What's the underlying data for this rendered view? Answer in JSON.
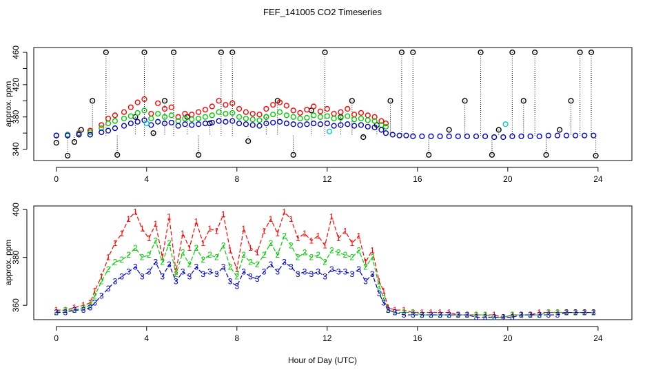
{
  "page": {
    "title": "FEF_141005  CO2 Timeseries",
    "shared_xlabel": "Hour of Day (UTC)"
  },
  "colors": {
    "ch1": "#ff0000",
    "ch2": "#00cc00",
    "ch3": "#0000cc",
    "raw": "#000000",
    "alt": "#00cccc"
  },
  "chart_data": [
    {
      "type": "scatter",
      "title": "FEF_141005  CO2 Timeseries",
      "ylabel": "approx. ppm",
      "xlim": [
        -1,
        25.5
      ],
      "ylim": [
        326,
        466
      ],
      "xticks": [
        0,
        4,
        8,
        12,
        16,
        20,
        24
      ],
      "yticks": [
        340,
        360,
        380,
        400,
        420,
        440,
        460
      ],
      "ytick_labels": [
        "340",
        "",
        "380",
        "",
        "420",
        "",
        "460"
      ],
      "grid": false,
      "legend": "none",
      "series": [
        {
          "key": "raw",
          "x": [
            0,
            0.5,
            0.8,
            1.1,
            1.6,
            2.2,
            2.7,
            3.5,
            3.9,
            4.3,
            4.8,
            5.2,
            5.8,
            6.3,
            6.8,
            7.3,
            7.8,
            8.5,
            9.3,
            9.8,
            10.5,
            11.3,
            11.9,
            12.6,
            13.1,
            13.6,
            14.2,
            14.8,
            15.3,
            15.8,
            16.5,
            17.4,
            18.1,
            18.8,
            19.3,
            19.6,
            20.2,
            20.7,
            21.2,
            21.7,
            22.3,
            22.8,
            23.2,
            23.7,
            23.9
          ],
          "y": [
            348,
            332,
            349,
            364,
            400,
            460,
            333,
            380,
            460,
            360,
            400,
            460,
            380,
            333,
            372,
            460,
            460,
            350,
            380,
            400,
            333,
            388,
            460,
            380,
            400,
            355,
            370,
            400,
            460,
            460,
            333,
            364,
            400,
            460,
            333,
            364,
            460,
            400,
            460,
            333,
            364,
            400,
            460,
            460,
            332
          ]
        },
        {
          "key": "ch1",
          "x": [
            0,
            0.5,
            1,
            1.5,
            2,
            2.3,
            2.6,
            3,
            3.3,
            3.6,
            3.9,
            4.2,
            4.5,
            4.8,
            5.1,
            5.4,
            5.7,
            6,
            6.3,
            6.6,
            6.9,
            7.2,
            7.5,
            7.8,
            8.1,
            8.4,
            8.7,
            9,
            9.3,
            9.6,
            9.9,
            10.2,
            10.5,
            10.8,
            11.1,
            11.4,
            11.7,
            12,
            12.3,
            12.6,
            12.9,
            13.2,
            13.5,
            13.8,
            14.1,
            14.4,
            14.6
          ],
          "y": [
            357,
            358,
            360,
            363,
            370,
            378,
            382,
            386,
            392,
            398,
            402,
            384,
            397,
            390,
            392,
            380,
            384,
            383,
            386,
            389,
            393,
            400,
            395,
            397,
            390,
            386,
            384,
            383,
            390,
            395,
            398,
            394,
            388,
            385,
            389,
            393,
            387,
            390,
            384,
            386,
            390,
            383,
            385,
            382,
            380,
            375,
            372
          ]
        },
        {
          "key": "ch2",
          "x": [
            0,
            0.5,
            1,
            1.5,
            2,
            2.3,
            2.6,
            3,
            3.3,
            3.6,
            3.9,
            4.2,
            4.5,
            4.8,
            5.1,
            5.4,
            5.7,
            6,
            6.3,
            6.6,
            6.9,
            7.2,
            7.5,
            7.8,
            8.1,
            8.4,
            8.7,
            9,
            9.3,
            9.6,
            9.9,
            10.2,
            10.5,
            10.8,
            11.1,
            11.4,
            11.7,
            12,
            12.3,
            12.6,
            12.9,
            13.2,
            13.5,
            13.8,
            14.1,
            14.4,
            14.6
          ],
          "y": [
            357,
            358,
            359,
            361,
            366,
            372,
            375,
            378,
            381,
            385,
            388,
            378,
            384,
            380,
            382,
            375,
            378,
            377,
            378,
            380,
            382,
            386,
            384,
            385,
            380,
            378,
            377,
            376,
            380,
            383,
            386,
            382,
            380,
            378,
            379,
            382,
            380,
            381,
            378,
            379,
            381,
            377,
            378,
            376,
            375,
            370,
            368
          ]
        },
        {
          "key": "ch3",
          "x": [
            0,
            0.5,
            1,
            1.5,
            2,
            2.3,
            2.6,
            3,
            3.3,
            3.6,
            3.9,
            4.2,
            4.5,
            4.8,
            5.1,
            5.4,
            5.7,
            6,
            6.3,
            6.6,
            6.9,
            7.2,
            7.5,
            7.8,
            8.1,
            8.4,
            8.7,
            9,
            9.3,
            9.6,
            9.9,
            10.2,
            10.5,
            10.8,
            11.1,
            11.4,
            11.7,
            12,
            12.3,
            12.6,
            12.9,
            13.2,
            13.5,
            13.8,
            14.1,
            14.4,
            14.6,
            14.9,
            15.2,
            15.5,
            15.8,
            16.2,
            16.6,
            17,
            17.4,
            17.8,
            18.2,
            18.6,
            19,
            19.4,
            19.8,
            20.2,
            20.6,
            21,
            21.4,
            21.8,
            22.2,
            22.6,
            23,
            23.4,
            23.8
          ],
          "y": [
            357,
            357,
            358,
            358,
            361,
            363,
            366,
            369,
            372,
            374,
            376,
            370,
            374,
            372,
            373,
            369,
            371,
            370,
            371,
            372,
            373,
            375,
            374,
            375,
            372,
            371,
            370,
            369,
            372,
            373,
            374,
            372,
            371,
            370,
            371,
            372,
            371,
            372,
            369,
            370,
            371,
            369,
            370,
            368,
            367,
            364,
            360,
            358,
            357,
            357,
            356,
            356,
            356,
            356,
            356,
            356,
            356,
            356,
            356,
            355,
            355,
            356,
            356,
            356,
            356,
            357,
            357,
            357,
            357,
            357,
            357
          ]
        },
        {
          "key": "alt",
          "x": [
            4.0,
            19.9,
            12.1
          ],
          "y": [
            372,
            371,
            362
          ]
        }
      ]
    },
    {
      "type": "line",
      "ylabel": "approx. ppm",
      "xlabel": "Hour of Day (UTC)",
      "xlim": [
        -1,
        25.5
      ],
      "ylim": [
        354,
        401.5
      ],
      "xticks": [
        0,
        4,
        8,
        12,
        16,
        20,
        24
      ],
      "yticks": [
        360,
        380,
        400
      ],
      "grid": false,
      "legend": "none",
      "series": [
        {
          "key": "ch1",
          "marker": "1",
          "x": [
            0,
            0.4,
            0.8,
            1.2,
            1.5,
            1.7,
            2,
            2.3,
            2.6,
            2.9,
            3.2,
            3.5,
            3.8,
            4.1,
            4.4,
            4.7,
            5,
            5.3,
            5.6,
            5.9,
            6.2,
            6.5,
            6.8,
            7.1,
            7.4,
            7.7,
            8,
            8.3,
            8.6,
            8.9,
            9.2,
            9.5,
            9.8,
            10.1,
            10.4,
            10.7,
            11,
            11.3,
            11.6,
            11.9,
            12.2,
            12.5,
            12.8,
            13.1,
            13.4,
            13.7,
            14,
            14.3,
            14.5,
            14.7,
            15,
            15.4,
            15.8,
            16.2,
            16.6,
            17,
            17.4,
            17.8,
            18.2,
            18.6,
            19,
            19.4,
            19.8,
            20.2,
            20.6,
            21,
            21.4,
            21.8,
            22.2,
            22.6,
            23,
            23.4,
            23.8
          ],
          "y": [
            358,
            358,
            359,
            360,
            361,
            366,
            372,
            380,
            386,
            390,
            396,
            399,
            392,
            388,
            394,
            380,
            397,
            374,
            390,
            384,
            395,
            386,
            392,
            391,
            398,
            383,
            375,
            392,
            384,
            382,
            391,
            396,
            390,
            399,
            396,
            388,
            390,
            387,
            389,
            385,
            397,
            388,
            391,
            386,
            389,
            378,
            383,
            370,
            366,
            359,
            358,
            358,
            357,
            357,
            357,
            357,
            357,
            356,
            356,
            356,
            356,
            356,
            355,
            356,
            356,
            356,
            357,
            357,
            357,
            357,
            357,
            357,
            357
          ]
        },
        {
          "key": "ch2",
          "marker": "2",
          "x": [
            0,
            0.4,
            0.8,
            1.2,
            1.5,
            1.7,
            2,
            2.3,
            2.6,
            2.9,
            3.2,
            3.5,
            3.8,
            4.1,
            4.4,
            4.7,
            5,
            5.3,
            5.6,
            5.9,
            6.2,
            6.5,
            6.8,
            7.1,
            7.4,
            7.7,
            8,
            8.3,
            8.6,
            8.9,
            9.2,
            9.5,
            9.8,
            10.1,
            10.4,
            10.7,
            11,
            11.3,
            11.6,
            11.9,
            12.2,
            12.5,
            12.8,
            13.1,
            13.4,
            13.7,
            14,
            14.3,
            14.5,
            14.7,
            15,
            15.4,
            15.8,
            16.2,
            16.6,
            17,
            17.4,
            17.8,
            18.2,
            18.6,
            19,
            19.4,
            19.8,
            20.2,
            20.6,
            21,
            21.4,
            21.8,
            22.2,
            22.6,
            23,
            23.4,
            23.8
          ],
          "y": [
            357,
            358,
            358,
            359,
            360,
            364,
            370,
            375,
            378,
            379,
            381,
            384,
            380,
            381,
            387,
            378,
            386,
            373,
            382,
            377,
            384,
            379,
            381,
            380,
            385,
            376,
            372,
            381,
            378,
            377,
            381,
            386,
            381,
            389,
            385,
            380,
            382,
            380,
            381,
            378,
            383,
            382,
            381,
            380,
            383,
            376,
            380,
            368,
            363,
            358,
            357,
            357,
            357,
            356,
            356,
            356,
            356,
            356,
            356,
            356,
            356,
            355,
            355,
            356,
            356,
            356,
            356,
            357,
            357,
            357,
            357,
            357,
            357
          ]
        },
        {
          "key": "ch3",
          "marker": "3",
          "x": [
            0,
            0.4,
            0.8,
            1.2,
            1.5,
            1.7,
            2,
            2.3,
            2.6,
            2.9,
            3.2,
            3.5,
            3.8,
            4.1,
            4.4,
            4.7,
            5,
            5.3,
            5.6,
            5.9,
            6.2,
            6.5,
            6.8,
            7.1,
            7.4,
            7.7,
            8,
            8.3,
            8.6,
            8.9,
            9.2,
            9.5,
            9.8,
            10.1,
            10.4,
            10.7,
            11,
            11.3,
            11.6,
            11.9,
            12.2,
            12.5,
            12.8,
            13.1,
            13.4,
            13.7,
            14,
            14.3,
            14.5,
            14.7,
            15,
            15.4,
            15.8,
            16.2,
            16.6,
            17,
            17.4,
            17.8,
            18.2,
            18.6,
            19,
            19.4,
            19.8,
            20.2,
            20.6,
            21,
            21.4,
            21.8,
            22.2,
            22.6,
            23,
            23.4,
            23.8
          ],
          "y": [
            357,
            357,
            358,
            358,
            359,
            361,
            364,
            367,
            370,
            372,
            374,
            376,
            372,
            374,
            378,
            372,
            377,
            370,
            374,
            372,
            376,
            373,
            374,
            373,
            376,
            370,
            368,
            374,
            372,
            371,
            374,
            377,
            374,
            378,
            376,
            373,
            374,
            373,
            374,
            372,
            375,
            374,
            374,
            373,
            375,
            370,
            373,
            365,
            361,
            358,
            357,
            356,
            356,
            356,
            356,
            356,
            356,
            356,
            356,
            355,
            355,
            355,
            355,
            355,
            356,
            356,
            356,
            356,
            356,
            357,
            357,
            357,
            357
          ]
        }
      ]
    }
  ]
}
